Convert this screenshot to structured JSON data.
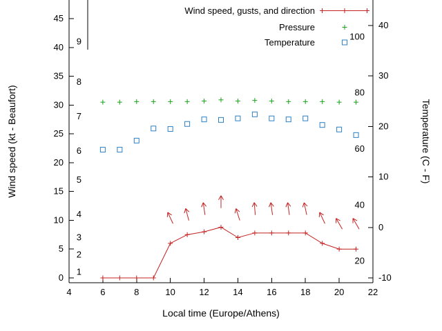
{
  "page": {
    "background": "#ffffff"
  },
  "chart_data": {
    "type": "line",
    "title": "",
    "xlabel": "Local time (Europe/Athens)",
    "ylabel_left": "Wind speed (kt - Beaufort)",
    "ylabel_right": "Temperature (C - F)",
    "xlim": [
      4,
      22
    ],
    "x_ticks": [
      4,
      6,
      8,
      10,
      12,
      14,
      16,
      18,
      20,
      22
    ],
    "left_axis_kt_ticks": [
      0,
      5,
      10,
      15,
      20,
      25,
      30,
      35,
      40,
      45
    ],
    "right_axis_c_ticks": [
      -10,
      0,
      10,
      20,
      30,
      40
    ],
    "beaufort_labels": [
      {
        "label": "1",
        "kt": 1
      },
      {
        "label": "2",
        "kt": 4
      },
      {
        "label": "3",
        "kt": 7
      },
      {
        "label": "4",
        "kt": 11
      },
      {
        "label": "5",
        "kt": 17
      },
      {
        "label": "6",
        "kt": 22
      },
      {
        "label": "7",
        "kt": 28
      },
      {
        "label": "8",
        "kt": 34
      },
      {
        "label": "9",
        "kt": 41
      }
    ],
    "fahrenheit_labels": [
      20,
      40,
      60,
      80,
      100
    ],
    "legend": [
      {
        "label": "Wind speed, gusts, and direction",
        "marker": "line-plus",
        "color": "#c42020"
      },
      {
        "label": "Pressure",
        "marker": "plus",
        "color": "#16a016"
      },
      {
        "label": "Temperature",
        "marker": "open-square",
        "color": "#2b7fc4"
      }
    ],
    "hours": [
      6,
      7,
      8,
      9,
      10,
      11,
      12,
      13,
      14,
      15,
      16,
      17,
      18,
      19,
      20,
      21
    ],
    "wind_speed_kt": [
      0,
      0,
      0,
      0,
      6,
      7.5,
      8,
      8.8,
      7,
      7.8,
      7.8,
      7.8,
      7.8,
      6,
      5,
      5
    ],
    "pressure_plot_kt_scale": [
      30.5,
      30.5,
      30.6,
      30.6,
      30.6,
      30.6,
      30.7,
      30.9,
      30.7,
      30.8,
      30.7,
      30.6,
      30.6,
      30.6,
      30.5,
      30.5
    ],
    "temperature_c": [
      15.4,
      15.4,
      17.2,
      19.6,
      19.5,
      20.5,
      21.4,
      21.3,
      21.6,
      22.4,
      21.6,
      21.4,
      21.6,
      20.3,
      19.4,
      18.3
    ],
    "wind_arrows": [
      {
        "hour": 10,
        "kt": 10.4,
        "angle_deg": -25
      },
      {
        "hour": 11,
        "kt": 11.0,
        "angle_deg": -15
      },
      {
        "hour": 12,
        "kt": 12.0,
        "angle_deg": -8
      },
      {
        "hour": 13,
        "kt": 13.2,
        "angle_deg": 0
      },
      {
        "hour": 14,
        "kt": 11.0,
        "angle_deg": -18
      },
      {
        "hour": 15,
        "kt": 12.0,
        "angle_deg": -5
      },
      {
        "hour": 16,
        "kt": 12.0,
        "angle_deg": -8
      },
      {
        "hour": 17,
        "kt": 12.0,
        "angle_deg": -8
      },
      {
        "hour": 18,
        "kt": 12.0,
        "angle_deg": -12
      },
      {
        "hour": 19,
        "kt": 10.4,
        "angle_deg": -25
      },
      {
        "hour": 20,
        "kt": 9.4,
        "angle_deg": -30
      },
      {
        "hour": 21,
        "kt": 9.4,
        "angle_deg": -30
      }
    ],
    "colors": {
      "wind": "#c42020",
      "pressure": "#16a016",
      "temperature": "#2b7fc4",
      "axis": "#000000",
      "background": "#ffffff"
    }
  }
}
